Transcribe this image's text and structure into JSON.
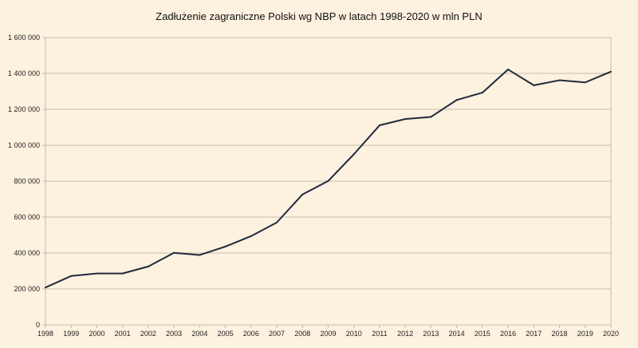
{
  "chart_data": {
    "type": "line",
    "title": "Zadłużenie zagraniczne Polski wg NBP w latach 1998-2020 w mln PLN",
    "xlabel": "",
    "ylabel": "",
    "categories": [
      "1998",
      "1999",
      "2000",
      "2001",
      "2002",
      "2003",
      "2004",
      "2005",
      "2006",
      "2007",
      "2008",
      "2009",
      "2010",
      "2011",
      "2012",
      "2013",
      "2014",
      "2015",
      "2016",
      "2017",
      "2018",
      "2019",
      "2020"
    ],
    "series": [
      {
        "values": [
          208000,
          272000,
          286000,
          286000,
          325000,
          401000,
          389000,
          436000,
          494000,
          570000,
          726000,
          801000,
          950000,
          1111000,
          1146000,
          1158000,
          1252000,
          1293000,
          1422000,
          1334000,
          1362000,
          1350000,
          1410000
        ]
      }
    ],
    "ylim": [
      0,
      1600000
    ],
    "yticks": [
      0,
      200000,
      400000,
      600000,
      800000,
      1000000,
      1200000,
      1400000,
      1600000
    ],
    "ytick_labels": [
      "0",
      "200 000",
      "400 000",
      "600 000",
      "800 000",
      "1 000 000",
      "1 200 000",
      "1 400 000",
      "1 600 000"
    ],
    "grid": true,
    "legend": "none",
    "colors": {
      "line": "#1f2a3c",
      "background": "#fdf1df",
      "grid": "#c8bca8"
    }
  }
}
